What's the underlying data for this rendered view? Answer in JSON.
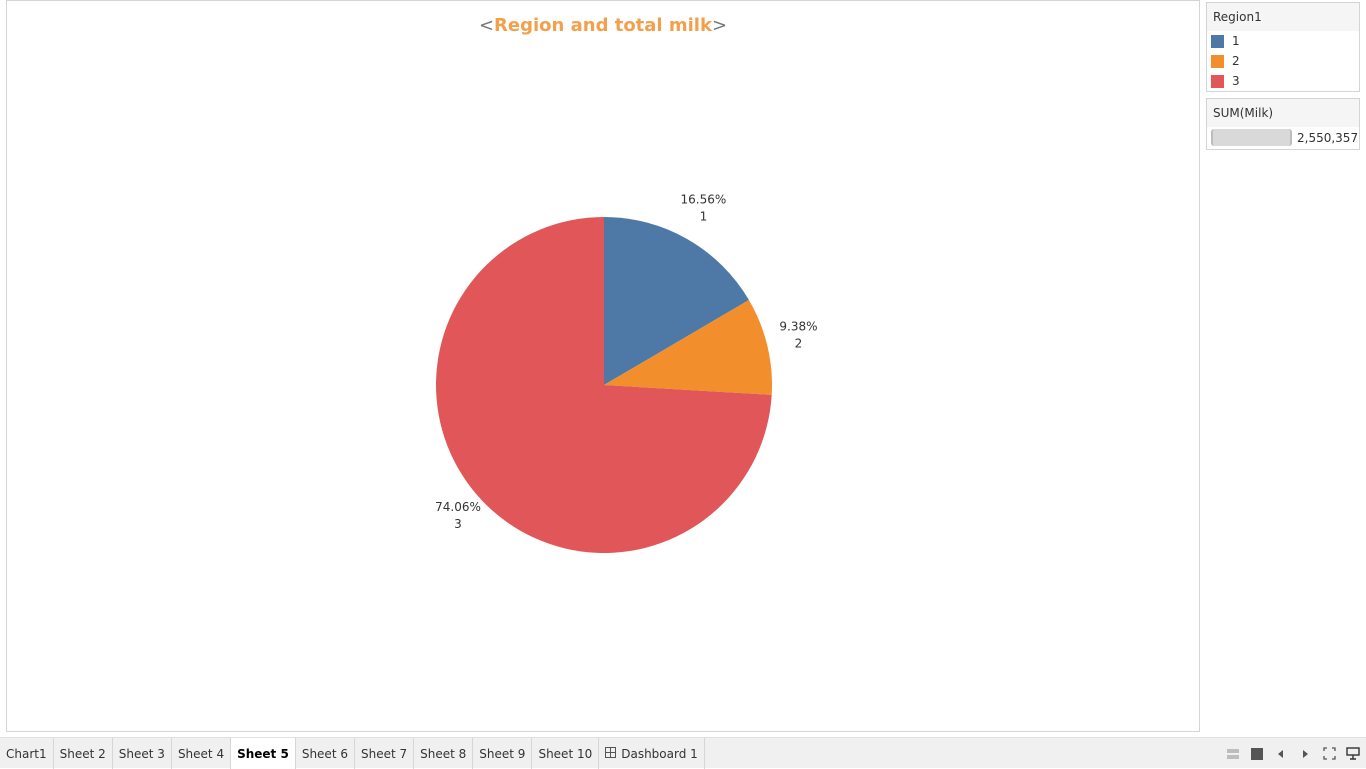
{
  "title": {
    "open": "<",
    "text": "Region and total milk",
    "close": ">"
  },
  "legend": {
    "title": "Region1",
    "items": [
      {
        "label": "1",
        "color": "#4e79a7"
      },
      {
        "label": "2",
        "color": "#f28e2b"
      },
      {
        "label": "3",
        "color": "#e15759"
      }
    ]
  },
  "size_legend": {
    "title": "SUM(Milk)",
    "value": "2,550,357"
  },
  "chart_data": {
    "type": "pie",
    "title": "Region and total milk",
    "categories": [
      "1",
      "2",
      "3"
    ],
    "values": [
      16.56,
      9.38,
      74.06
    ],
    "value_labels": [
      "16.56%",
      "9.38%",
      "74.06%"
    ],
    "colors": [
      "#4e79a7",
      "#f28e2b",
      "#e15759"
    ],
    "total": 2550357,
    "legend_placement": "right"
  },
  "tabs": [
    {
      "label": "Chart1",
      "active": false
    },
    {
      "label": "Sheet 2",
      "active": false
    },
    {
      "label": "Sheet 3",
      "active": false
    },
    {
      "label": "Sheet 4",
      "active": false
    },
    {
      "label": "Sheet 5",
      "active": true
    },
    {
      "label": "Sheet 6",
      "active": false
    },
    {
      "label": "Sheet 7",
      "active": false
    },
    {
      "label": "Sheet 8",
      "active": false
    },
    {
      "label": "Sheet 9",
      "active": false
    },
    {
      "label": "Sheet 10",
      "active": false
    },
    {
      "label": "Dashboard 1",
      "active": false,
      "icon": "dashboard-grid-icon"
    }
  ],
  "bottom_icons": [
    "grid-view-icon",
    "filmstrip-icon",
    "prev-arrow-icon",
    "next-arrow-icon",
    "fullscreen-icon",
    "presentation-mode-icon"
  ]
}
